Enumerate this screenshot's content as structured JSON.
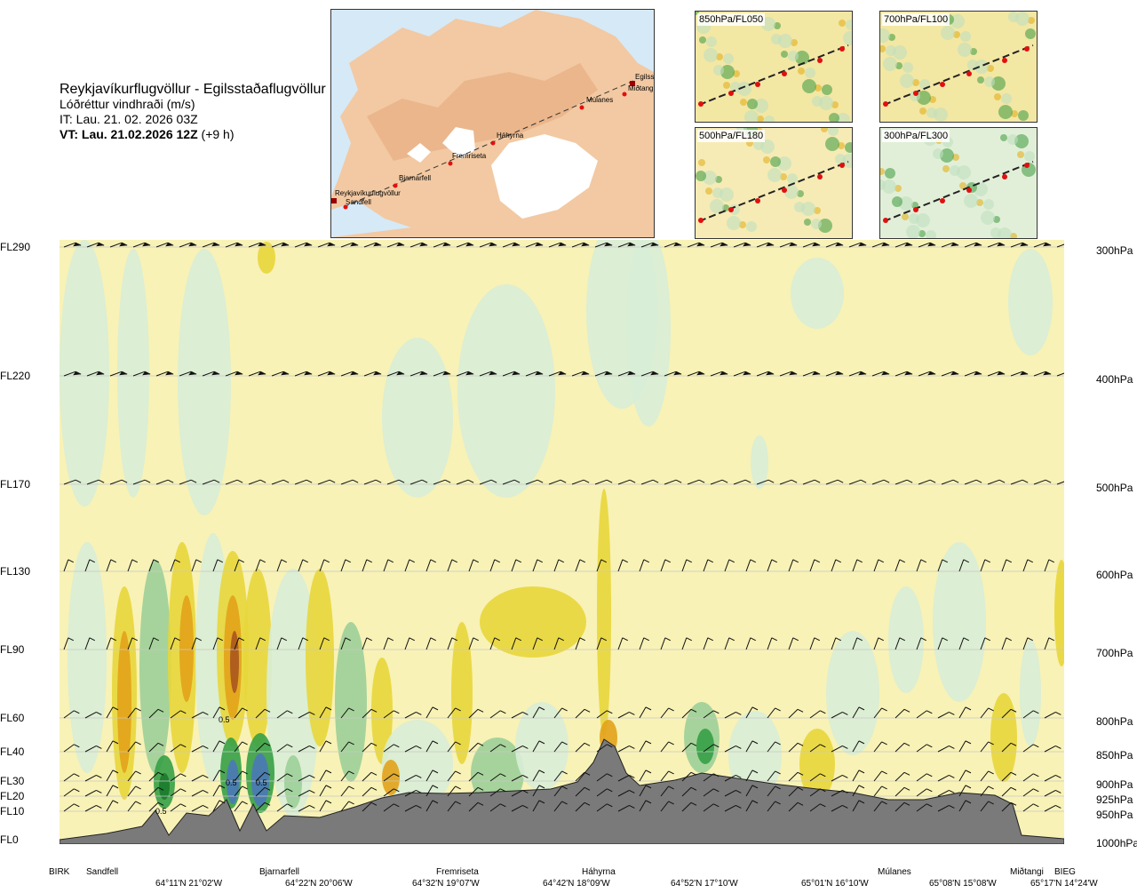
{
  "header": {
    "route": "Reykjavíkurflugvöllur - Egilsstaðaflugvöllur",
    "parameter": "Lóðréttur vindhraði (m/s)",
    "issue_time": "IT: Lau. 21. 02. 2026 03Z",
    "valid_time": "VT: Lau. 21.02.2026 12Z",
    "lead": "(+9 h)"
  },
  "route_map": {
    "waypoints": [
      {
        "name": "Reykjavíkurflugvöllur"
      },
      {
        "name": "Sandfell"
      },
      {
        "name": "Bjarnarfell"
      },
      {
        "name": "Fremriseta"
      },
      {
        "name": "Háhyrna"
      },
      {
        "name": "Múlanes"
      },
      {
        "name": "Miðtangi"
      },
      {
        "name": "Egilsstaðaflugvöllur"
      }
    ],
    "visible_labels": [
      "Reykjavíkurflugvöllur",
      "Sandfell",
      "Bjarnarfell",
      "Fremriseta",
      "Háhyrna",
      "Múlanes",
      "Miðtangi",
      "Egilss"
    ]
  },
  "level_maps": [
    {
      "label": "850hPa/FL050"
    },
    {
      "label": "700hPa/FL100"
    },
    {
      "label": "500hPa/FL180"
    },
    {
      "label": "300hPa/FL300"
    }
  ],
  "chart_data": {
    "type": "heatmap",
    "title": "",
    "y_left_ticks": [
      "FL290",
      "FL220",
      "FL170",
      "FL130",
      "FL90",
      "FL60",
      "FL40",
      "FL30",
      "FL20",
      "FL10",
      "FL0"
    ],
    "y_right_ticks": [
      "300hPa",
      "400hPa",
      "500hPa",
      "600hPa",
      "700hPa",
      "800hPa",
      "850hPa",
      "900hPa",
      "925hPa",
      "950hPa",
      "1000hPa"
    ],
    "pressure_hpa": [
      300,
      400,
      500,
      600,
      700,
      800,
      850,
      900,
      925,
      950,
      1000
    ],
    "x_waypoints": [
      "BIRK",
      "Sandfell",
      "Bjarnarfell",
      "Fremriseta",
      "Háhyrna",
      "Múlanes",
      "Miðtangi",
      "BIEG"
    ],
    "x_coordinates": [
      "64°11'N 21°02'W",
      "64°22'N 20°06'W",
      "64°32'N 19°07'W",
      "64°42'N 18°09'W",
      "64°52'N 17°10'W",
      "65°01'N 16°10'W",
      "65°08'N 15°08'W",
      "65°17'N 14°24'W"
    ],
    "contour_labels": [
      "0.5",
      "0.5",
      "0.5",
      "0.5"
    ],
    "colors": {
      "up_weak": "#f7f0a8",
      "up_mod": "#e8d63a",
      "up_strong": "#e2a21a",
      "up_vstrong": "#a8551e",
      "down_weak": "#d8edd6",
      "down_mod": "#9ccf98",
      "down_strong": "#35a046",
      "down_vstrong": "#1b7a2e",
      "down_extreme": "#4a78b8",
      "terrain": "#7a7a7a",
      "background": "#f8f2b6"
    },
    "terrain_peak": "Háhyrna"
  }
}
